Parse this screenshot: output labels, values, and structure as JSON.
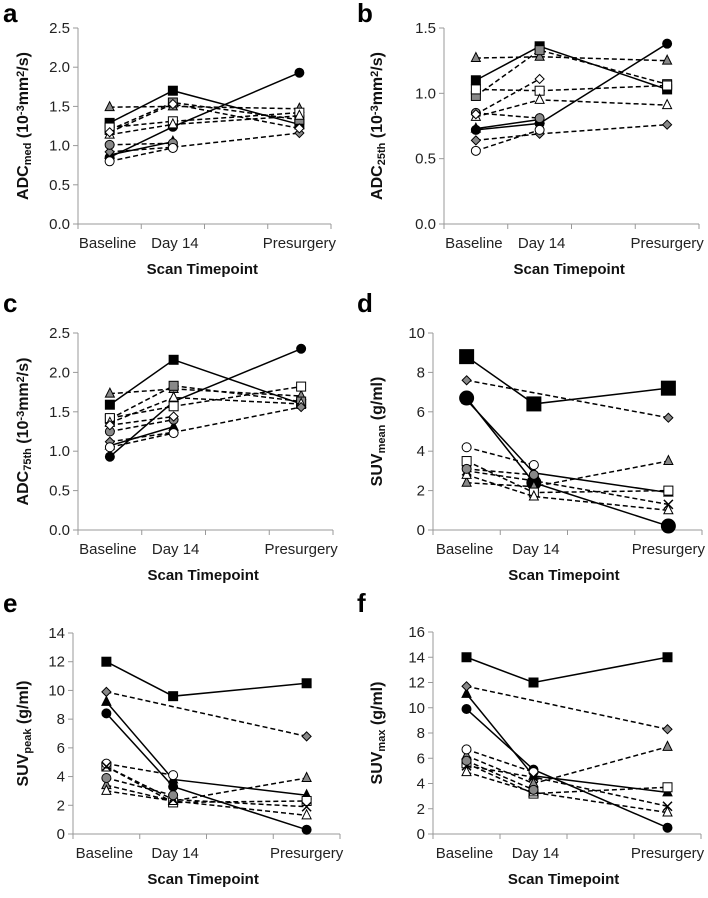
{
  "chart_data": [
    {
      "panel": "a",
      "type": "line",
      "ylabel_parts": [
        {
          "t": "ADC"
        },
        {
          "t": "med",
          "s": "sub"
        },
        {
          "t": " (10"
        },
        {
          "t": "-3",
          "s": "sup"
        },
        {
          "t": "mm"
        },
        {
          "t": "2",
          "s": "sup"
        },
        {
          "t": "/s)"
        }
      ],
      "xlabel": "Scan Timepoint",
      "categories": [
        "Baseline",
        "Day 14",
        "Presurgery"
      ],
      "ylim": [
        0,
        2.5
      ],
      "ystep": 0.5,
      "decimals": 1,
      "series": [
        {
          "marker": "square",
          "fill": "#000",
          "dash": false,
          "values": [
            1.29,
            1.7,
            1.27
          ]
        },
        {
          "marker": "circle",
          "fill": "#000",
          "dash": false,
          "values": [
            0.85,
            1.24,
            1.93
          ]
        },
        {
          "marker": "triangle",
          "fill": "#000",
          "dash": false,
          "values": [
            0.88,
            1.05,
            null
          ]
        },
        {
          "marker": "triangle",
          "fill": "#888",
          "dash": true,
          "values": [
            1.49,
            1.5,
            1.47
          ]
        },
        {
          "marker": "square",
          "fill": "#888",
          "dash": true,
          "values": [
            1.2,
            1.55,
            1.33
          ]
        },
        {
          "marker": "square",
          "fill": "#fff",
          "dash": true,
          "values": [
            1.23,
            1.31,
            1.42
          ]
        },
        {
          "marker": "triangle",
          "fill": "#fff",
          "dash": true,
          "values": [
            1.14,
            1.27,
            1.38
          ]
        },
        {
          "marker": "diamond",
          "fill": "#888",
          "dash": true,
          "values": [
            0.92,
            0.98,
            1.16
          ]
        },
        {
          "marker": "circle",
          "fill": "#888",
          "dash": true,
          "values": [
            1.01,
            1.03,
            null
          ]
        },
        {
          "marker": "circle",
          "fill": "#fff",
          "dash": true,
          "values": [
            0.8,
            0.97,
            null
          ]
        },
        {
          "marker": "diamond",
          "fill": "#fff",
          "dash": true,
          "values": [
            1.17,
            1.53,
            1.22
          ]
        }
      ]
    },
    {
      "panel": "b",
      "type": "line",
      "ylabel_parts": [
        {
          "t": "ADC"
        },
        {
          "t": "25th",
          "s": "sub"
        },
        {
          "t": " (10"
        },
        {
          "t": "-3",
          "s": "sup"
        },
        {
          "t": "mm"
        },
        {
          "t": "2",
          "s": "sup"
        },
        {
          "t": "/s)"
        }
      ],
      "xlabel": "Scan Timepoint",
      "categories": [
        "Baseline",
        "Day 14",
        "Presurgery"
      ],
      "ylim": [
        0,
        1.5
      ],
      "ystep": 0.5,
      "decimals": 1,
      "series": [
        {
          "marker": "square",
          "fill": "#000",
          "dash": false,
          "values": [
            1.1,
            1.36,
            1.03
          ]
        },
        {
          "marker": "circle",
          "fill": "#000",
          "dash": false,
          "values": [
            0.72,
            0.77,
            1.38
          ]
        },
        {
          "marker": "triangle",
          "fill": "#000",
          "dash": false,
          "values": [
            0.73,
            0.8,
            null
          ]
        },
        {
          "marker": "triangle",
          "fill": "#888",
          "dash": true,
          "values": [
            1.27,
            1.28,
            1.25
          ]
        },
        {
          "marker": "square",
          "fill": "#888",
          "dash": true,
          "values": [
            0.98,
            1.33,
            1.07
          ]
        },
        {
          "marker": "square",
          "fill": "#fff",
          "dash": true,
          "values": [
            1.03,
            1.02,
            1.06
          ]
        },
        {
          "marker": "triangle",
          "fill": "#fff",
          "dash": true,
          "values": [
            0.82,
            0.95,
            0.91
          ]
        },
        {
          "marker": "diamond",
          "fill": "#888",
          "dash": true,
          "values": [
            0.64,
            0.69,
            0.76
          ]
        },
        {
          "marker": "circle",
          "fill": "#888",
          "dash": true,
          "values": [
            0.85,
            0.81,
            null
          ]
        },
        {
          "marker": "circle",
          "fill": "#fff",
          "dash": true,
          "values": [
            0.56,
            0.72,
            null
          ]
        },
        {
          "marker": "diamond",
          "fill": "#fff",
          "dash": true,
          "values": [
            0.84,
            1.11,
            null
          ]
        }
      ]
    },
    {
      "panel": "c",
      "type": "line",
      "ylabel_parts": [
        {
          "t": "ADC"
        },
        {
          "t": "75th",
          "s": "sub"
        },
        {
          "t": " (10"
        },
        {
          "t": "-3",
          "s": "sup"
        },
        {
          "t": "mm"
        },
        {
          "t": "2",
          "s": "sup"
        },
        {
          "t": "/s)"
        }
      ],
      "xlabel": "Scan Timepoint",
      "categories": [
        "Baseline",
        "Day 14",
        "Presurgery"
      ],
      "ylim": [
        0,
        2.5
      ],
      "ystep": 0.5,
      "decimals": 1,
      "series": [
        {
          "marker": "square",
          "fill": "#000",
          "dash": false,
          "values": [
            1.59,
            2.16,
            1.6
          ]
        },
        {
          "marker": "circle",
          "fill": "#000",
          "dash": false,
          "values": [
            0.93,
            1.63,
            2.3
          ]
        },
        {
          "marker": "triangle",
          "fill": "#000",
          "dash": false,
          "values": [
            1.07,
            1.31,
            null
          ]
        },
        {
          "marker": "triangle",
          "fill": "#888",
          "dash": true,
          "values": [
            1.73,
            1.79,
            1.7
          ]
        },
        {
          "marker": "square",
          "fill": "#888",
          "dash": true,
          "values": [
            1.41,
            1.83,
            1.63
          ]
        },
        {
          "marker": "square",
          "fill": "#fff",
          "dash": true,
          "values": [
            1.42,
            1.57,
            1.82
          ]
        },
        {
          "marker": "triangle",
          "fill": "#fff",
          "dash": true,
          "values": [
            1.36,
            1.68,
            1.6
          ]
        },
        {
          "marker": "diamond",
          "fill": "#888",
          "dash": true,
          "values": [
            1.12,
            1.24,
            1.56
          ]
        },
        {
          "marker": "circle",
          "fill": "#888",
          "dash": true,
          "values": [
            1.25,
            1.4,
            null
          ]
        },
        {
          "marker": "circle",
          "fill": "#fff",
          "dash": true,
          "values": [
            1.05,
            1.23,
            null
          ]
        },
        {
          "marker": "diamond",
          "fill": "#fff",
          "dash": true,
          "values": [
            1.33,
            1.44,
            null
          ]
        }
      ]
    },
    {
      "panel": "d",
      "type": "line",
      "ylabel_parts": [
        {
          "t": "SUV"
        },
        {
          "t": "mean",
          "s": "sub"
        },
        {
          "t": " (g/ml)"
        }
      ],
      "xlabel": "Scan Timepoint",
      "categories": [
        "Baseline",
        "Day 14",
        "Presurgery"
      ],
      "ylim": [
        0,
        10
      ],
      "ystep": 2,
      "decimals": 0,
      "series": [
        {
          "marker": "square",
          "fill": "#000",
          "dash": false,
          "big": true,
          "values": [
            8.8,
            6.4,
            7.2
          ]
        },
        {
          "marker": "circle",
          "fill": "#000",
          "dash": false,
          "big": true,
          "values": [
            6.7,
            2.4,
            0.2
          ]
        },
        {
          "marker": "triangle",
          "fill": "#000",
          "dash": false,
          "values": [
            6.6,
            2.9,
            1.9
          ]
        },
        {
          "marker": "diamond",
          "fill": "#888",
          "dash": true,
          "values": [
            7.6,
            null,
            5.7
          ]
        },
        {
          "marker": "triangle",
          "fill": "#888",
          "dash": true,
          "values": [
            2.4,
            2.2,
            3.5
          ]
        },
        {
          "marker": "square",
          "fill": "#fff",
          "dash": true,
          "values": [
            3.5,
            1.9,
            2.0
          ]
        },
        {
          "marker": "circle",
          "fill": "#fff",
          "dash": true,
          "values": [
            4.2,
            3.3,
            null
          ]
        },
        {
          "marker": "triangle",
          "fill": "#fff",
          "dash": true,
          "values": [
            2.8,
            1.7,
            1.0
          ]
        },
        {
          "marker": "x",
          "fill": "#000",
          "dash": true,
          "values": [
            3.0,
            2.5,
            1.3
          ]
        },
        {
          "marker": "circle",
          "fill": "#888",
          "dash": true,
          "values": [
            3.1,
            2.8,
            null
          ]
        }
      ]
    },
    {
      "panel": "e",
      "type": "line",
      "ylabel_parts": [
        {
          "t": "SUV"
        },
        {
          "t": "peak",
          "s": "sub"
        },
        {
          "t": " (g/ml)"
        }
      ],
      "xlabel": "Scan Timepoint",
      "categories": [
        "Baseline",
        "Day 14",
        "Presurgery"
      ],
      "ylim": [
        0,
        14
      ],
      "ystep": 2,
      "decimals": 0,
      "series": [
        {
          "marker": "square",
          "fill": "#000",
          "dash": false,
          "values": [
            12.0,
            9.6,
            10.5
          ]
        },
        {
          "marker": "circle",
          "fill": "#000",
          "dash": false,
          "values": [
            8.4,
            3.3,
            0.3
          ]
        },
        {
          "marker": "triangle",
          "fill": "#000",
          "dash": false,
          "values": [
            9.2,
            3.8,
            2.7
          ]
        },
        {
          "marker": "diamond",
          "fill": "#888",
          "dash": true,
          "values": [
            9.9,
            null,
            6.8
          ]
        },
        {
          "marker": "triangle",
          "fill": "#888",
          "dash": true,
          "values": [
            3.4,
            2.3,
            3.9
          ]
        },
        {
          "marker": "square",
          "fill": "#fff",
          "dash": true,
          "values": [
            4.7,
            2.2,
            2.3
          ]
        },
        {
          "marker": "circle",
          "fill": "#fff",
          "dash": true,
          "values": [
            4.9,
            4.1,
            null
          ]
        },
        {
          "marker": "triangle",
          "fill": "#fff",
          "dash": true,
          "values": [
            3.0,
            2.3,
            1.3
          ]
        },
        {
          "marker": "x",
          "fill": "#000",
          "dash": true,
          "values": [
            4.7,
            2.4,
            1.9
          ]
        },
        {
          "marker": "circle",
          "fill": "#888",
          "dash": true,
          "values": [
            3.9,
            2.7,
            null
          ]
        }
      ]
    },
    {
      "panel": "f",
      "type": "line",
      "ylabel_parts": [
        {
          "t": "SUV"
        },
        {
          "t": "max",
          "s": "sub"
        },
        {
          "t": " (g/ml)"
        }
      ],
      "xlabel": "Scan Timepoint",
      "categories": [
        "Baseline",
        "Day 14",
        "Presurgery"
      ],
      "ylim": [
        0,
        16
      ],
      "ystep": 2,
      "decimals": 0,
      "series": [
        {
          "marker": "square",
          "fill": "#000",
          "dash": false,
          "values": [
            14.0,
            12.0,
            14.0
          ]
        },
        {
          "marker": "circle",
          "fill": "#000",
          "dash": false,
          "values": [
            9.9,
            5.1,
            0.5
          ]
        },
        {
          "marker": "triangle",
          "fill": "#000",
          "dash": false,
          "values": [
            11.1,
            4.6,
            3.3
          ]
        },
        {
          "marker": "diamond",
          "fill": "#888",
          "dash": true,
          "values": [
            11.7,
            null,
            8.3
          ]
        },
        {
          "marker": "triangle",
          "fill": "#888",
          "dash": true,
          "values": [
            6.2,
            4.0,
            6.9
          ]
        },
        {
          "marker": "square",
          "fill": "#fff",
          "dash": true,
          "values": [
            5.6,
            3.2,
            3.7
          ]
        },
        {
          "marker": "circle",
          "fill": "#fff",
          "dash": true,
          "values": [
            6.7,
            4.9,
            null
          ]
        },
        {
          "marker": "triangle",
          "fill": "#fff",
          "dash": true,
          "values": [
            4.9,
            3.3,
            1.7
          ]
        },
        {
          "marker": "x",
          "fill": "#000",
          "dash": true,
          "values": [
            5.4,
            4.5,
            2.2
          ]
        },
        {
          "marker": "circle",
          "fill": "#888",
          "dash": true,
          "values": [
            5.8,
            3.5,
            null
          ]
        }
      ]
    }
  ]
}
